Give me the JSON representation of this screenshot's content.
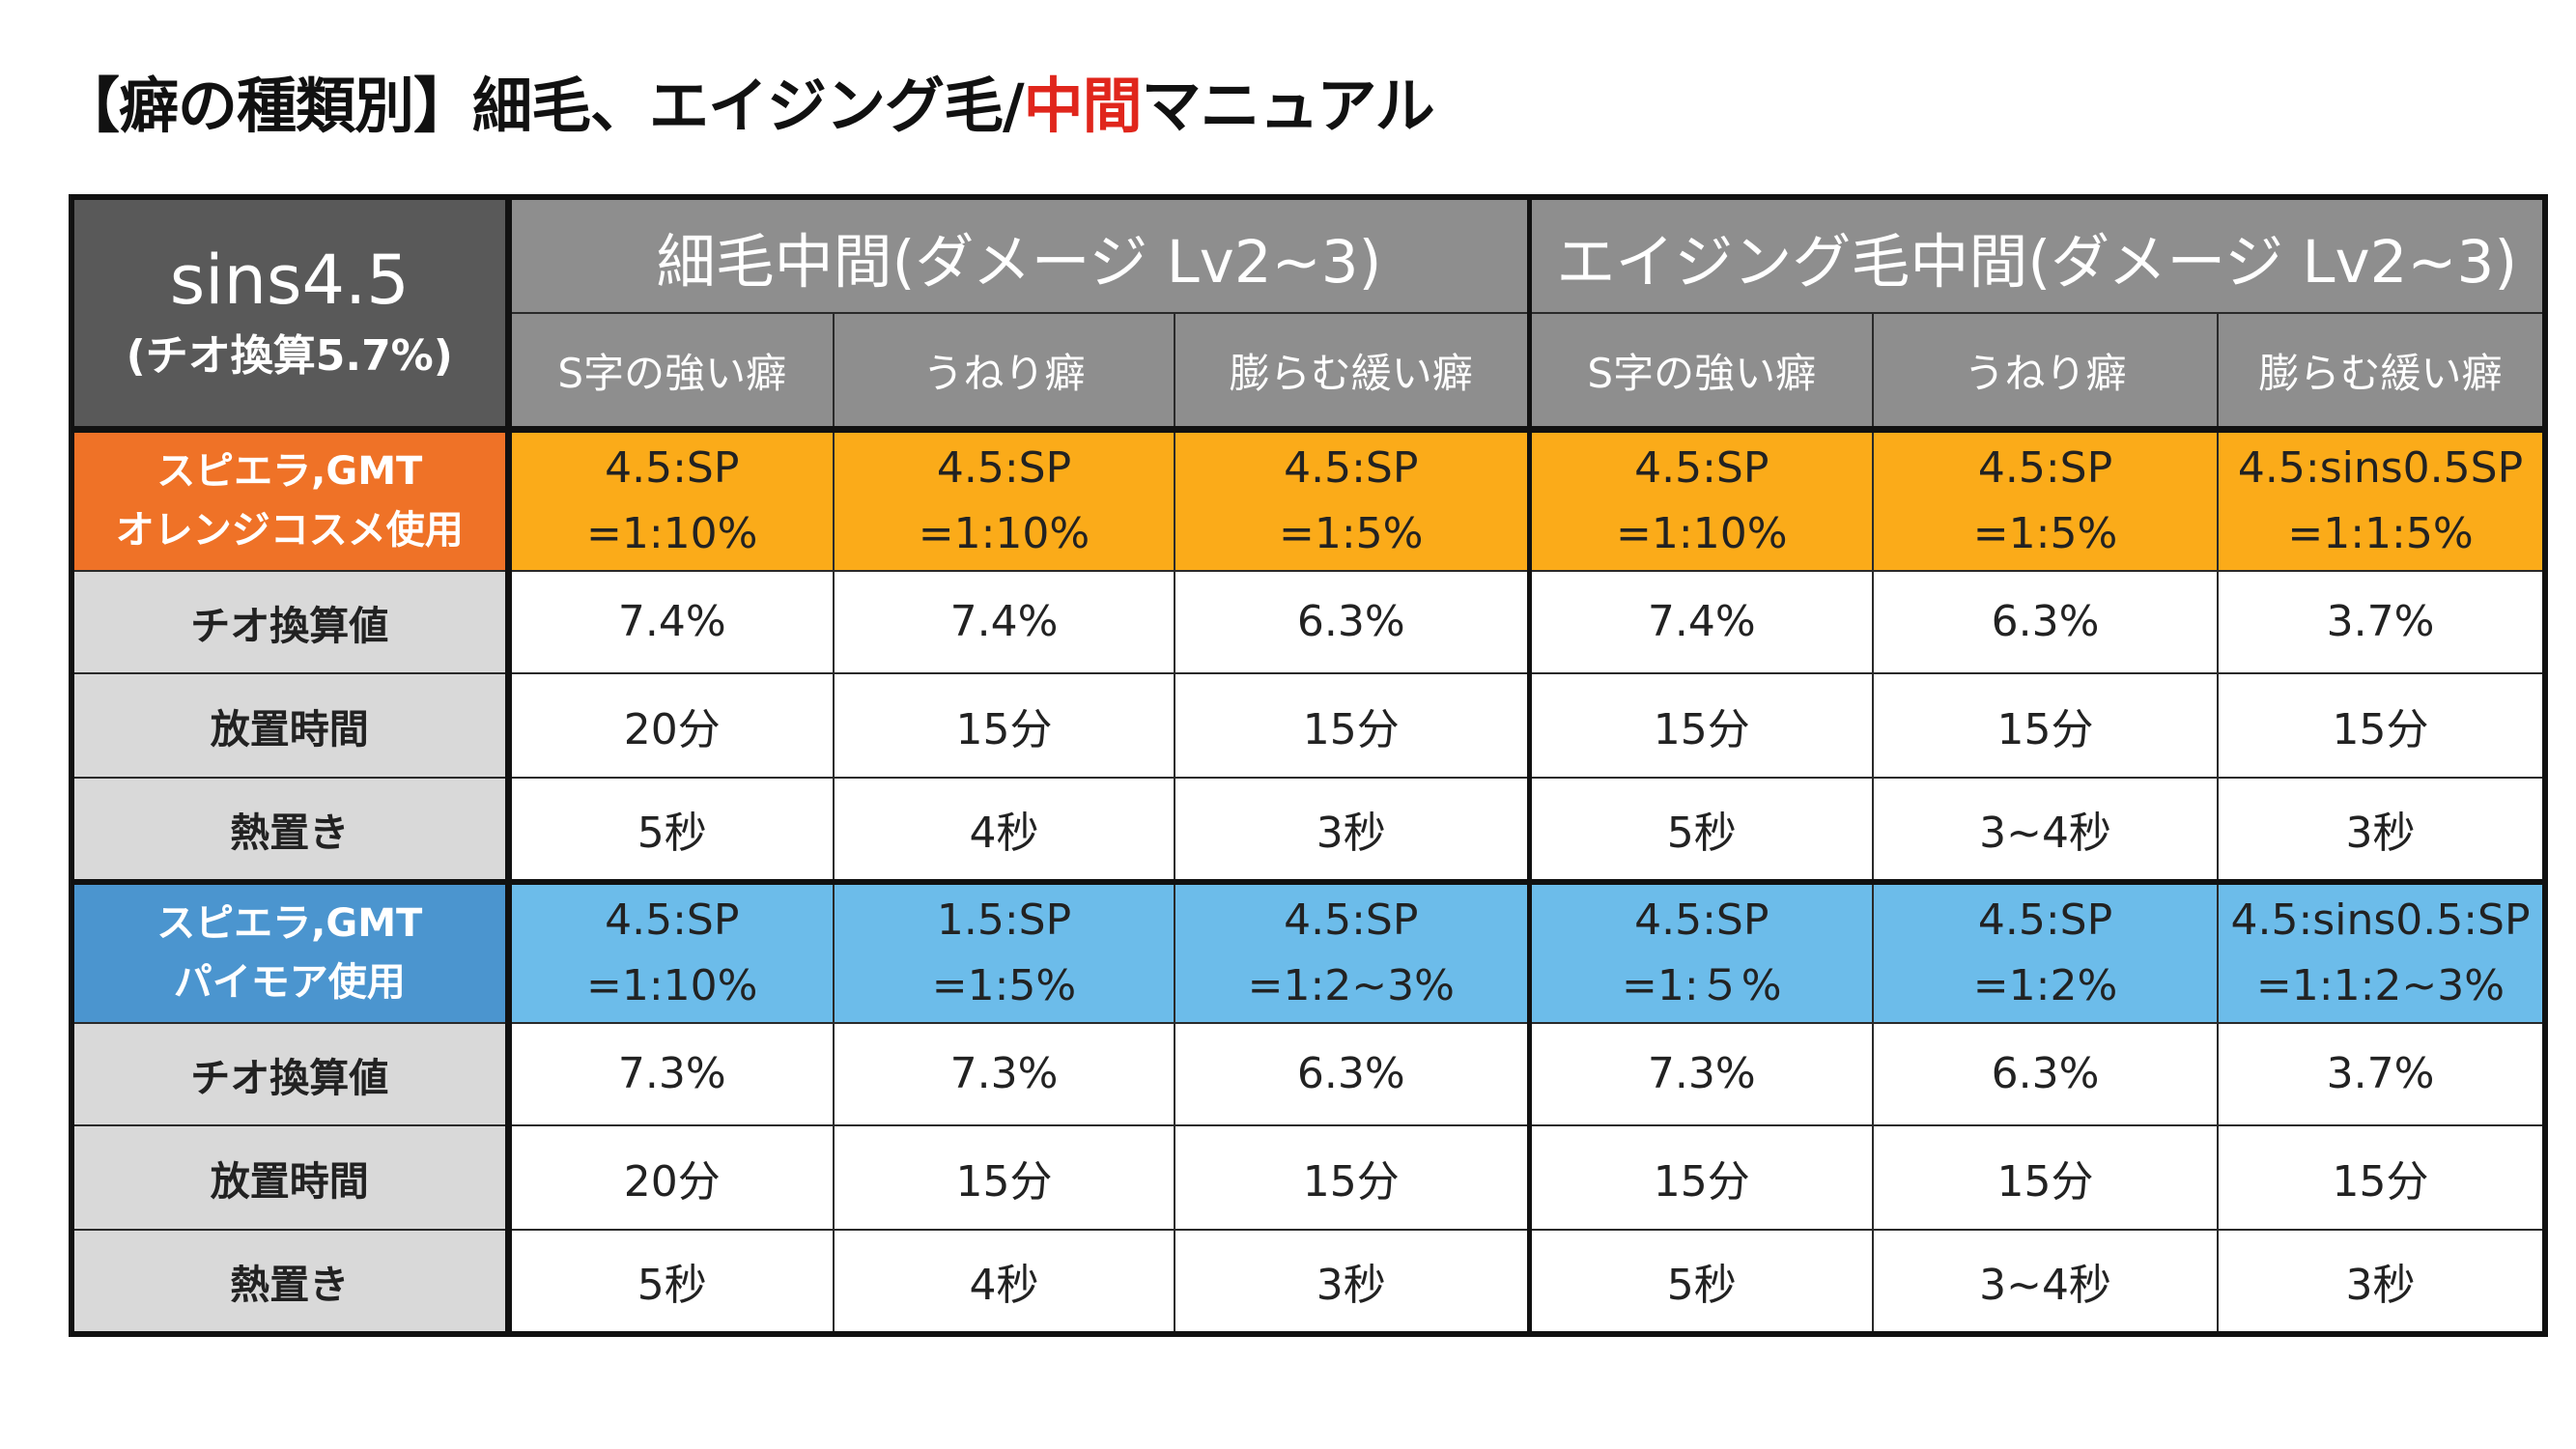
{
  "title": {
    "before": "【癖の種類別】細毛、エイジング毛/",
    "accent": "中間",
    "after": "マニュアル",
    "accent_color": "#e0261c"
  },
  "corner": {
    "product": "sins4.5",
    "note": "(チオ換算5.7%)"
  },
  "groups": [
    "細毛中間(ダメージ Lv2~3)",
    "エイジング毛中間(ダメージ Lv2~3)"
  ],
  "subheaders": [
    "S字の強い癖",
    "うねり癖",
    "膨らむ緩い癖",
    "S字の強い癖",
    "うねり癖",
    "膨らむ緩い癖"
  ],
  "blocks": [
    {
      "label": [
        "スピエラ,GMT",
        "オレンジコスメ使用"
      ],
      "color": "#fbab19",
      "label_color": "#ef7227",
      "mix": [
        [
          "4.5:SP",
          "=1:10%"
        ],
        [
          "4.5:SP",
          "=1:10%"
        ],
        [
          "4.5:SP",
          "=1:5%"
        ],
        [
          "4.5:SP",
          "=1:10%"
        ],
        [
          "4.5:SP",
          "=1:5%"
        ],
        [
          "4.5:sins0.5SP",
          "=1:1:5%"
        ]
      ],
      "rows": [
        {
          "label": "チオ換算値",
          "values": [
            "7.4%",
            "7.4%",
            "6.3%",
            "7.4%",
            "6.3%",
            "3.7%"
          ]
        },
        {
          "label": "放置時間",
          "values": [
            "20分",
            "15分",
            "15分",
            "15分",
            "15分",
            "15分"
          ]
        },
        {
          "label": "熱置き",
          "values": [
            "5秒",
            "4秒",
            "3秒",
            "5秒",
            "3~4秒",
            "3秒"
          ]
        }
      ]
    },
    {
      "label": [
        "スピエラ,GMT",
        "パイモア使用"
      ],
      "color": "#6cbcea",
      "label_color": "#4b95cf",
      "mix": [
        [
          "4.5:SP",
          "=1:10%"
        ],
        [
          "1.5:SP",
          "=1:5%"
        ],
        [
          "4.5:SP",
          "=1:2~3%"
        ],
        [
          "4.5:SP",
          "=1:５%"
        ],
        [
          "4.5:SP",
          "=1:2%"
        ],
        [
          "4.5:sins0.5:SP",
          "=1:1:2~3%"
        ]
      ],
      "rows": [
        {
          "label": "チオ換算値",
          "values": [
            "7.3%",
            "7.3%",
            "6.3%",
            "7.3%",
            "6.3%",
            "3.7%"
          ]
        },
        {
          "label": "放置時間",
          "values": [
            "20分",
            "15分",
            "15分",
            "15分",
            "15分",
            "15分"
          ]
        },
        {
          "label": "熱置き",
          "values": [
            "5秒",
            "4秒",
            "3秒",
            "5秒",
            "3~4秒",
            "3秒"
          ]
        }
      ]
    }
  ]
}
